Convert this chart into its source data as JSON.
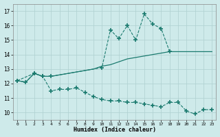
{
  "xlabel": "Humidex (Indice chaleur)",
  "background_color": "#ceeaea",
  "line_color": "#1a7a6e",
  "xlim": [
    -0.5,
    23.5
  ],
  "ylim": [
    9.5,
    17.5
  ],
  "xticks": [
    0,
    1,
    2,
    3,
    4,
    5,
    6,
    7,
    8,
    9,
    10,
    11,
    12,
    13,
    14,
    15,
    16,
    17,
    18,
    19,
    20,
    21,
    22,
    23
  ],
  "yticks": [
    10,
    11,
    12,
    13,
    14,
    15,
    16,
    17
  ],
  "grid_color": "#aed0d0",
  "line1_x": [
    0,
    1,
    2,
    3,
    4,
    5,
    6,
    7,
    8,
    9,
    10,
    11,
    12,
    13,
    14,
    15,
    16,
    17,
    18,
    19,
    20,
    21,
    22,
    23
  ],
  "line1_y": [
    12.2,
    12.1,
    12.7,
    12.5,
    12.5,
    12.6,
    12.7,
    12.8,
    12.9,
    13.0,
    13.2,
    13.3,
    13.5,
    13.7,
    13.8,
    13.9,
    14.0,
    14.1,
    14.2,
    14.2,
    14.2,
    14.2,
    14.2,
    14.2
  ],
  "line2_x": [
    0,
    1,
    2,
    3,
    4,
    5,
    6,
    7,
    8,
    9,
    10,
    11,
    12,
    13,
    14,
    15,
    16,
    17,
    18,
    19,
    20,
    21,
    22,
    23
  ],
  "line2_y": [
    12.2,
    12.1,
    12.7,
    12.5,
    11.5,
    11.6,
    11.6,
    11.7,
    11.4,
    11.1,
    10.9,
    10.8,
    10.8,
    10.7,
    10.7,
    10.6,
    10.5,
    10.4,
    10.7,
    10.7,
    10.1,
    9.9,
    10.2,
    10.2
  ],
  "line3_x": [
    0,
    2,
    3,
    4,
    10,
    11,
    12,
    13,
    14,
    15,
    16,
    17,
    18
  ],
  "line3_y": [
    12.2,
    12.7,
    12.5,
    12.5,
    13.1,
    15.7,
    15.1,
    16.0,
    15.0,
    16.8,
    16.1,
    15.8,
    14.2
  ]
}
